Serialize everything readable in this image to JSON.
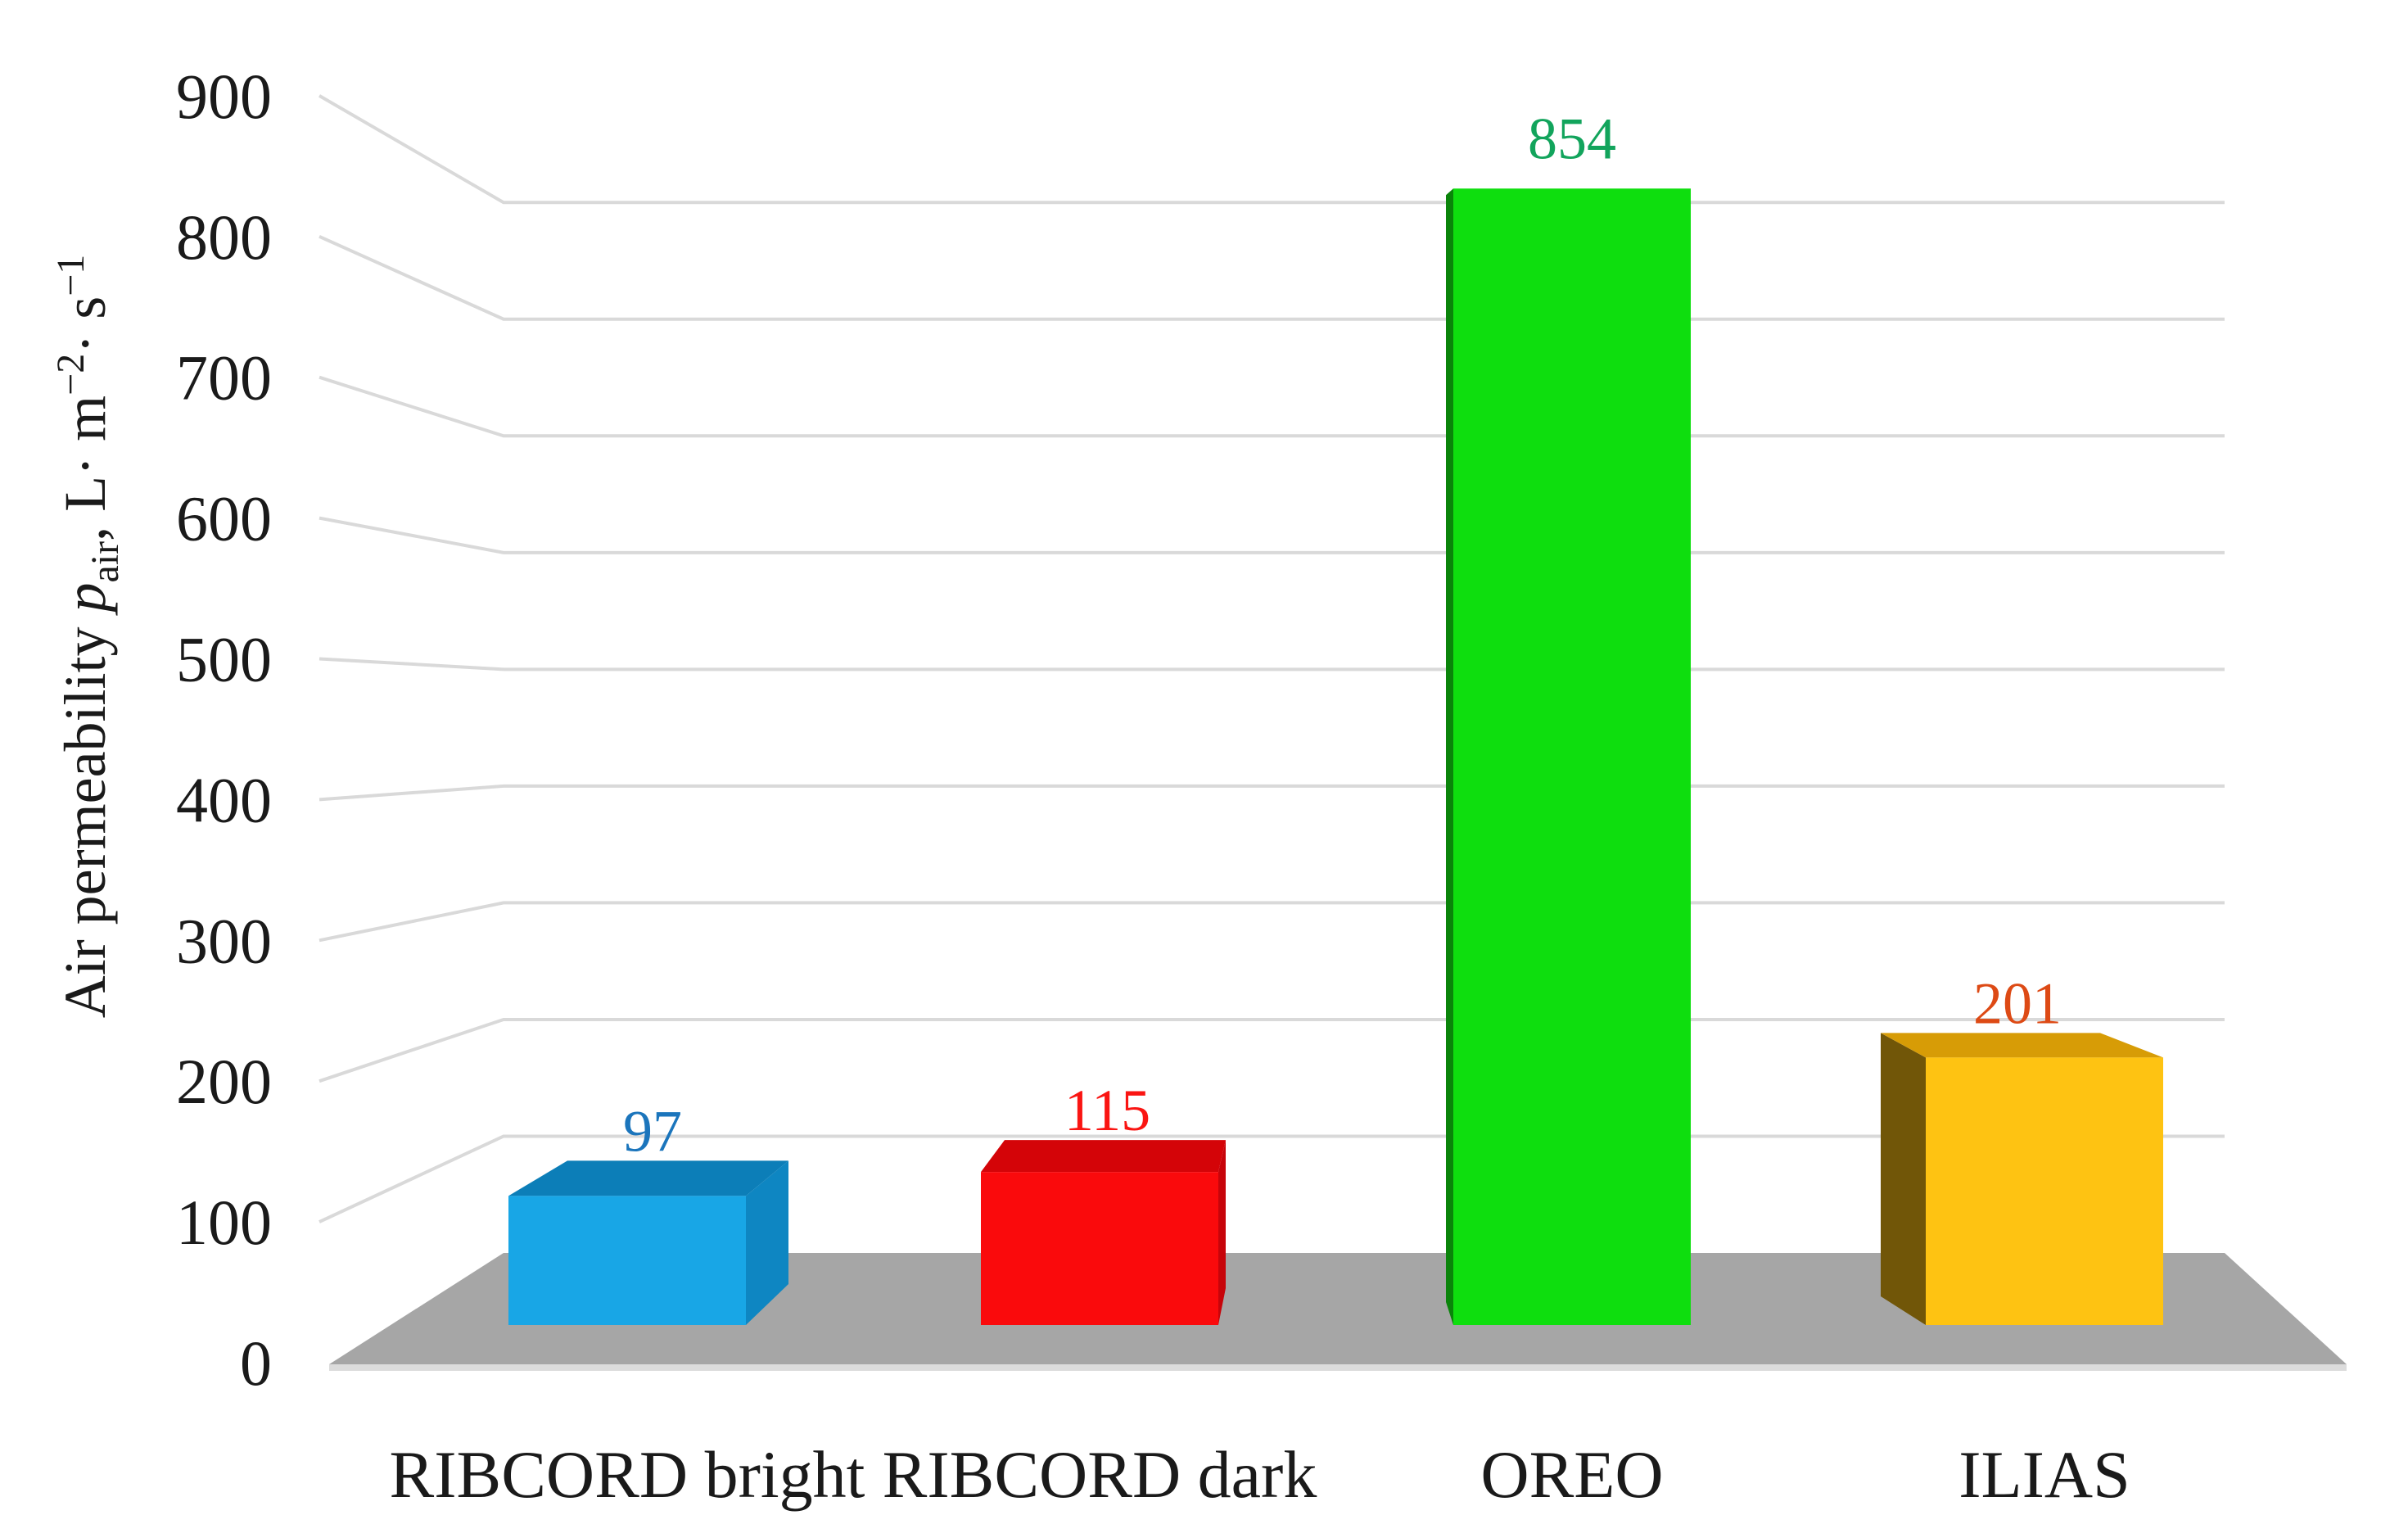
{
  "chart_data": {
    "type": "bar",
    "style": "3d-perspective-column",
    "title": "",
    "categories": [
      "RIBCORD bright",
      "RIBCORD dark",
      "OREO",
      "ILIAS"
    ],
    "values": [
      97,
      115,
      854,
      201
    ],
    "value_labels": [
      "97",
      "115",
      "854",
      "201"
    ],
    "xlabel": "",
    "ylabel": {
      "prefix": "Air permeability ",
      "symbol": "p",
      "symbol_sub": "air",
      "unit_part1": ", L· m",
      "unit_sup1": "−2",
      "unit_part2": "· s",
      "unit_sup2": "−1"
    },
    "yticks": [
      0,
      100,
      200,
      300,
      400,
      500,
      600,
      700,
      800,
      900
    ],
    "ylim": [
      0,
      900
    ],
    "grid": true,
    "legend_position": "none",
    "background": "#FFFFFF",
    "gridline_color": "#D9D9D9",
    "floor_color": "#A6A6A6",
    "floor_edge_color": "#DCDCDC",
    "text_color": "#1A1A1A",
    "series": [
      {
        "name": "RIBCORD bright",
        "value": 97,
        "front_color": "#18A6E6",
        "top_color": "#0C7EB8",
        "side_color": "#0E86C2",
        "label_color": "#1B75BC"
      },
      {
        "name": "RIBCORD dark",
        "value": 115,
        "front_color": "#FA0A0C",
        "top_color": "#D40408",
        "side_color": "#C7040A",
        "label_color": "#FA1512"
      },
      {
        "name": "OREO",
        "value": 854,
        "front_color": "#0EDE0E",
        "top_color": "#0BBF0B",
        "side_color": "#0A840A",
        "label_color": "#12A45C"
      },
      {
        "name": "ILIAS",
        "value": 201,
        "front_color": "#FEC312",
        "top_color": "#D79C06",
        "side_color": "#715608",
        "label_color": "#DD4A15"
      }
    ]
  }
}
